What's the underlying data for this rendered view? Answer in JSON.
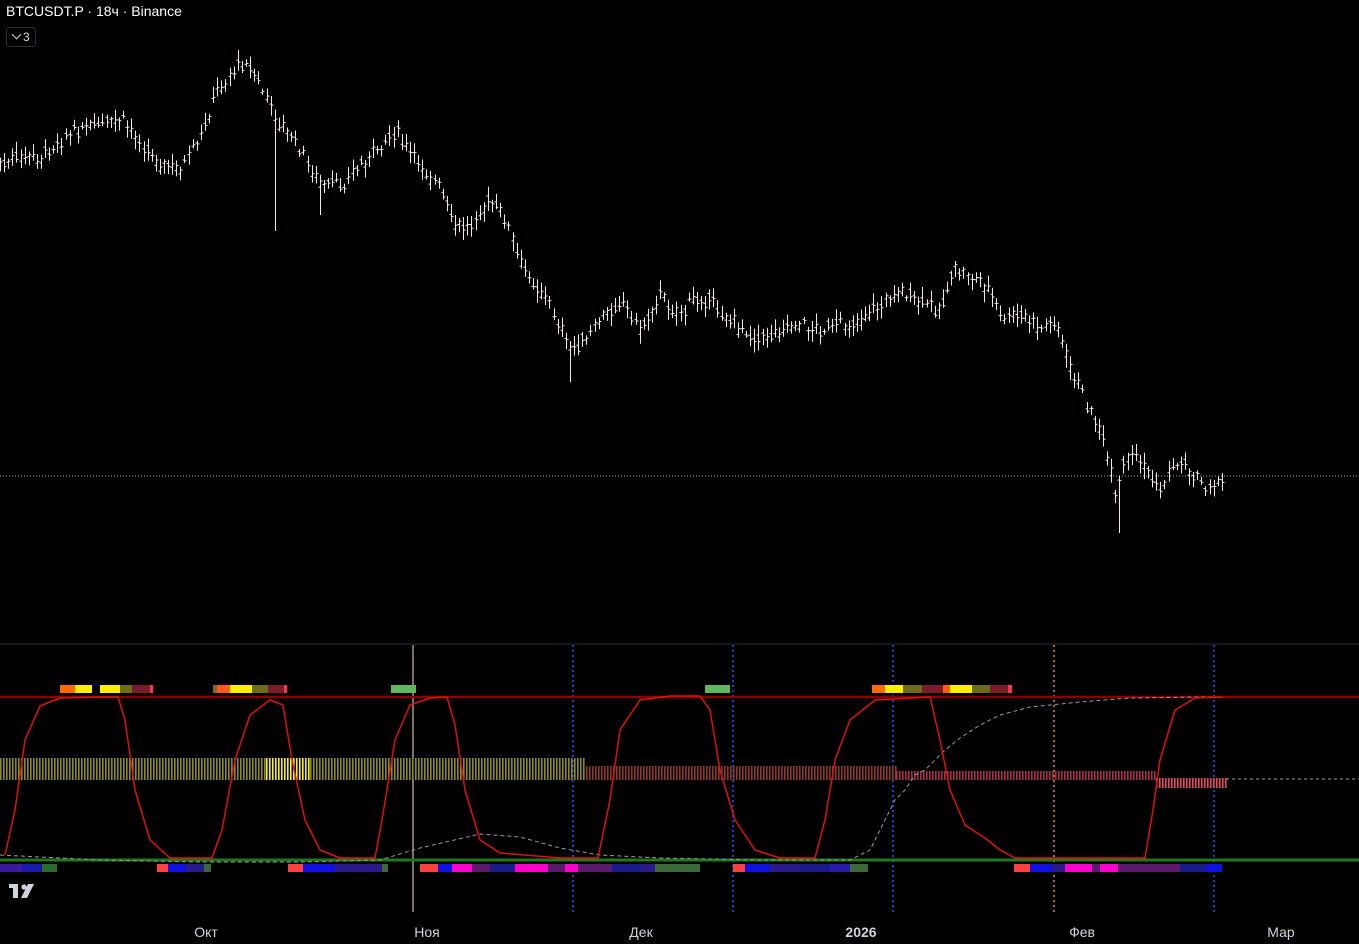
{
  "header": {
    "title": "BTCUSDT.P · 18ч · Binance",
    "indicator_count": "3"
  },
  "icons": {
    "logo": "tradingview-logo-icon",
    "toggle": "chevron-down-icon"
  },
  "colors": {
    "background": "#000000",
    "candles": "#f2e8ec",
    "oscillator": "#e01010",
    "upper_level": "#8b0000",
    "lower_level": "#1f7a1f",
    "dashed_line": "#9a9a9a",
    "vertical_markers": "#2f4fff",
    "cursor_line": "#f5e6c8",
    "orange_marker": "#e0902a"
  },
  "chart_data": {
    "type": "candlestick",
    "xlabel": "",
    "ylabel": "",
    "x_ticks": [
      {
        "label": "Окт",
        "bold": false
      },
      {
        "label": "Ноя",
        "bold": false
      },
      {
        "label": "Дек",
        "bold": false
      },
      {
        "label": "2026",
        "bold": true
      },
      {
        "label": "Фев",
        "bold": false
      },
      {
        "label": "Мар",
        "bold": false
      }
    ],
    "price_path": [
      [
        0,
        165
      ],
      [
        20,
        158
      ],
      [
        40,
        160
      ],
      [
        60,
        140
      ],
      [
        80,
        128
      ],
      [
        100,
        127
      ],
      [
        120,
        120
      ],
      [
        140,
        140
      ],
      [
        160,
        165
      ],
      [
        180,
        170
      ],
      [
        200,
        140
      ],
      [
        215,
        95
      ],
      [
        230,
        75
      ],
      [
        245,
        60
      ],
      [
        260,
        85
      ],
      [
        275,
        120
      ],
      [
        290,
        135
      ],
      [
        305,
        160
      ],
      [
        320,
        185
      ],
      [
        340,
        185
      ],
      [
        360,
        165
      ],
      [
        380,
        150
      ],
      [
        395,
        130
      ],
      [
        410,
        155
      ],
      [
        425,
        170
      ],
      [
        440,
        190
      ],
      [
        455,
        228
      ],
      [
        470,
        225
      ],
      [
        490,
        200
      ],
      [
        505,
        220
      ],
      [
        520,
        265
      ],
      [
        540,
        290
      ],
      [
        555,
        315
      ],
      [
        570,
        350
      ],
      [
        585,
        340
      ],
      [
        600,
        320
      ],
      [
        620,
        300
      ],
      [
        640,
        330
      ],
      [
        660,
        295
      ],
      [
        680,
        315
      ],
      [
        700,
        295
      ],
      [
        720,
        310
      ],
      [
        740,
        330
      ],
      [
        760,
        340
      ],
      [
        780,
        330
      ],
      [
        800,
        325
      ],
      [
        820,
        330
      ],
      [
        840,
        325
      ],
      [
        860,
        320
      ],
      [
        880,
        305
      ],
      [
        900,
        290
      ],
      [
        920,
        305
      ],
      [
        940,
        308
      ],
      [
        955,
        270
      ],
      [
        970,
        275
      ],
      [
        990,
        290
      ],
      [
        1000,
        320
      ],
      [
        1020,
        315
      ],
      [
        1040,
        330
      ],
      [
        1055,
        320
      ],
      [
        1065,
        355
      ],
      [
        1075,
        380
      ],
      [
        1090,
        410
      ],
      [
        1100,
        430
      ],
      [
        1110,
        470
      ],
      [
        1115,
        500
      ],
      [
        1125,
        460
      ],
      [
        1140,
        460
      ],
      [
        1150,
        475
      ],
      [
        1160,
        490
      ],
      [
        1170,
        470
      ],
      [
        1180,
        460
      ],
      [
        1190,
        470
      ],
      [
        1200,
        480
      ],
      [
        1210,
        488
      ],
      [
        1225,
        478
      ]
    ],
    "price_wicks": [
      [
        273,
        231
      ],
      [
        320,
        215
      ],
      [
        570,
        382
      ],
      [
        1118,
        533
      ]
    ],
    "oscillator_path": [
      [
        5,
        855
      ],
      [
        15,
        810
      ],
      [
        25,
        740
      ],
      [
        40,
        706
      ],
      [
        60,
        698
      ],
      [
        100,
        697
      ],
      [
        118,
        697
      ],
      [
        125,
        720
      ],
      [
        135,
        790
      ],
      [
        150,
        840
      ],
      [
        170,
        858
      ],
      [
        212,
        858
      ],
      [
        222,
        830
      ],
      [
        235,
        760
      ],
      [
        250,
        715
      ],
      [
        270,
        700
      ],
      [
        283,
        705
      ],
      [
        292,
        760
      ],
      [
        305,
        820
      ],
      [
        320,
        850
      ],
      [
        340,
        858
      ],
      [
        375,
        858
      ],
      [
        382,
        820
      ],
      [
        395,
        740
      ],
      [
        410,
        705
      ],
      [
        430,
        698
      ],
      [
        447,
        697
      ],
      [
        455,
        725
      ],
      [
        465,
        790
      ],
      [
        480,
        840
      ],
      [
        500,
        853
      ],
      [
        560,
        858
      ],
      [
        598,
        858
      ],
      [
        610,
        800
      ],
      [
        620,
        730
      ],
      [
        640,
        700
      ],
      [
        670,
        696
      ],
      [
        700,
        696
      ],
      [
        710,
        710
      ],
      [
        720,
        770
      ],
      [
        735,
        820
      ],
      [
        755,
        850
      ],
      [
        780,
        858
      ],
      [
        815,
        858
      ],
      [
        825,
        820
      ],
      [
        835,
        760
      ],
      [
        850,
        720
      ],
      [
        875,
        700
      ],
      [
        930,
        697
      ],
      [
        940,
        740
      ],
      [
        950,
        790
      ],
      [
        965,
        825
      ],
      [
        985,
        838
      ],
      [
        1000,
        850
      ],
      [
        1015,
        858
      ],
      [
        1145,
        858
      ],
      [
        1153,
        810
      ],
      [
        1160,
        760
      ],
      [
        1175,
        710
      ],
      [
        1195,
        698
      ],
      [
        1222,
        697
      ]
    ],
    "dashed_path": [
      [
        0,
        855
      ],
      [
        100,
        860
      ],
      [
        200,
        862
      ],
      [
        300,
        862
      ],
      [
        380,
        860
      ],
      [
        420,
        848
      ],
      [
        480,
        834
      ],
      [
        520,
        837
      ],
      [
        560,
        848
      ],
      [
        600,
        855
      ],
      [
        660,
        858
      ],
      [
        760,
        860
      ],
      [
        850,
        860
      ],
      [
        870,
        850
      ],
      [
        880,
        830
      ],
      [
        895,
        800
      ],
      [
        905,
        790
      ],
      [
        915,
        775
      ],
      [
        925,
        770
      ],
      [
        935,
        760
      ],
      [
        945,
        750
      ],
      [
        960,
        738
      ],
      [
        980,
        725
      ],
      [
        1000,
        715
      ],
      [
        1030,
        707
      ],
      [
        1080,
        702
      ],
      [
        1130,
        698
      ],
      [
        1200,
        697
      ],
      [
        1222,
        697
      ]
    ],
    "last_price_y": 476,
    "level_lines": {
      "upper_y": 697,
      "lower_y": 860
    },
    "blue_markers_x": [
      573,
      733,
      893,
      1214
    ],
    "orange_marker_x": 1054,
    "cursor_x": 413,
    "histogram_segments": [
      {
        "x0": 0,
        "x1": 266,
        "y0": 758,
        "y1": 780,
        "color": "#8c8a25"
      },
      {
        "x0": 266,
        "x1": 310,
        "y0": 758,
        "y1": 780,
        "color": "#f5f022"
      },
      {
        "x0": 310,
        "x1": 586,
        "y0": 758,
        "y1": 780,
        "color": "#8c8a25"
      },
      {
        "x0": 586,
        "x1": 896,
        "y0": 766,
        "y1": 780,
        "color": "#8a3a2a"
      },
      {
        "x0": 896,
        "x1": 1156,
        "y0": 771,
        "y1": 780,
        "color": "#a3324a"
      },
      {
        "x0": 1156,
        "x1": 1226,
        "y0": 778,
        "y1": 788,
        "color": "#e34a62"
      }
    ],
    "top_band": [
      [
        60,
        75,
        "#ff6a00"
      ],
      [
        75,
        92,
        "#ffee00"
      ],
      [
        100,
        120,
        "#ffee00"
      ],
      [
        120,
        132,
        "#6b6b1a"
      ],
      [
        132,
        150,
        "#7a1c2a"
      ],
      [
        150,
        153,
        "#ff3355"
      ],
      [
        213,
        217,
        "#7a6a2a"
      ],
      [
        217,
        230,
        "#ff5a1a"
      ],
      [
        230,
        252,
        "#ffee00"
      ],
      [
        252,
        268,
        "#6b6b1a"
      ],
      [
        268,
        284,
        "#7a1c2a"
      ],
      [
        284,
        287,
        "#ff3355"
      ],
      [
        391,
        416,
        "#5fb85f"
      ],
      [
        705,
        730,
        "#5fb85f"
      ],
      [
        872,
        885,
        "#ff6a00"
      ],
      [
        885,
        903,
        "#ffee00"
      ],
      [
        903,
        922,
        "#6b6b1a"
      ],
      [
        922,
        943,
        "#7a1c2a"
      ],
      [
        943,
        950,
        "#ff5a1a"
      ],
      [
        950,
        972,
        "#ffee00"
      ],
      [
        972,
        990,
        "#6b6b1a"
      ],
      [
        990,
        1008,
        "#7a1c2a"
      ],
      [
        1008,
        1012,
        "#ff3355"
      ]
    ],
    "bottom_band": [
      [
        0,
        22,
        "#3a1a9a"
      ],
      [
        22,
        42,
        "#1a1aaa"
      ],
      [
        42,
        57,
        "#2f6a2f"
      ],
      [
        157,
        168,
        "#ff4040"
      ],
      [
        168,
        186,
        "#1010e0"
      ],
      [
        186,
        204,
        "#2a1a8a"
      ],
      [
        204,
        211,
        "#3a6a3a"
      ],
      [
        288,
        303,
        "#ff4040"
      ],
      [
        303,
        335,
        "#1010e0"
      ],
      [
        335,
        382,
        "#2a1a8a"
      ],
      [
        382,
        388,
        "#3a6a3a"
      ],
      [
        420,
        438,
        "#ff4040"
      ],
      [
        438,
        452,
        "#1010e0"
      ],
      [
        452,
        472,
        "#ff00cc"
      ],
      [
        472,
        490,
        "#5a1a6a"
      ],
      [
        490,
        515,
        "#1a1a8a"
      ],
      [
        515,
        548,
        "#ff00cc"
      ],
      [
        548,
        565,
        "#5a1a6a"
      ],
      [
        565,
        578,
        "#ff00cc"
      ],
      [
        578,
        612,
        "#5a1a6a"
      ],
      [
        612,
        640,
        "#1a1a8a"
      ],
      [
        640,
        655,
        "#2a1a8a"
      ],
      [
        655,
        700,
        "#3a6a3a"
      ],
      [
        733,
        745,
        "#ff4040"
      ],
      [
        745,
        770,
        "#1010e0"
      ],
      [
        770,
        800,
        "#2a1a8a"
      ],
      [
        800,
        830,
        "#1a1a8a"
      ],
      [
        830,
        850,
        "#2a1aaa"
      ],
      [
        850,
        868,
        "#3a6a3a"
      ],
      [
        1014,
        1030,
        "#ff4040"
      ],
      [
        1030,
        1052,
        "#1010e0"
      ],
      [
        1052,
        1065,
        "#2a1a8a"
      ],
      [
        1065,
        1092,
        "#ff00cc"
      ],
      [
        1092,
        1100,
        "#5a1a6a"
      ],
      [
        1100,
        1118,
        "#ff00cc"
      ],
      [
        1118,
        1180,
        "#5a1a6a"
      ],
      [
        1180,
        1206,
        "#1a1a8a"
      ],
      [
        1206,
        1222,
        "#1010e0"
      ]
    ]
  }
}
